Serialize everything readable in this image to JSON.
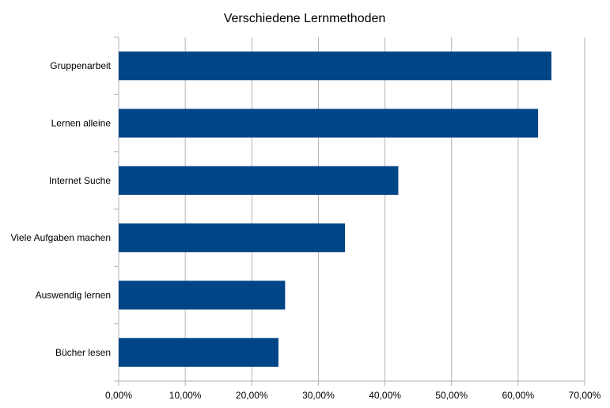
{
  "chart_data": {
    "type": "bar",
    "orientation": "horizontal",
    "title": "Verschiedene Lernmethoden",
    "categories": [
      "Gruppenarbeit",
      "Lernen alleine",
      "Internet Suche",
      "Viele Aufgaben machen",
      "Auswendig lernen",
      "Bücher lesen"
    ],
    "values": [
      65,
      63,
      42,
      34,
      25,
      24
    ],
    "xlim": [
      0,
      70
    ],
    "x_ticks": [
      0,
      10,
      20,
      30,
      40,
      50,
      60,
      70
    ],
    "x_tick_labels": [
      "0,00%",
      "10,00%",
      "20,00%",
      "30,00%",
      "40,00%",
      "50,00%",
      "60,00%",
      "70,00%"
    ],
    "grid": "vertical",
    "legend": "none",
    "colors": {
      "bar": "#004586",
      "grid": "#b3b3b3",
      "axis": "#b3b3b3"
    }
  }
}
